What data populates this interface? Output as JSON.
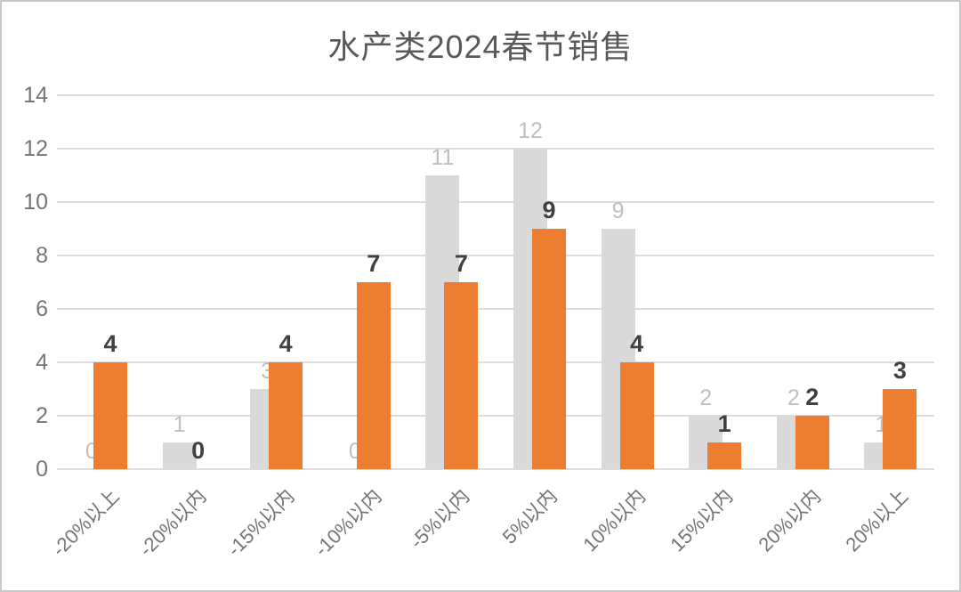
{
  "window": {
    "background": "#ffffff",
    "border_color": "#c8c8c8"
  },
  "chart_data": {
    "type": "bar",
    "title": "水产类2024春节销售",
    "categories": [
      "-20%以上",
      "-20%以内",
      "-15%以内",
      "-10%以内",
      "-5%以内",
      "5%以内",
      "10%以内",
      "15%以内",
      "20%以内",
      "20%以上"
    ],
    "series": [
      {
        "name": "gray",
        "color": "#d9d9d9",
        "label_color": "#bfbfbf",
        "values": [
          0,
          1,
          3,
          0,
          11,
          12,
          9,
          2,
          2,
          1
        ]
      },
      {
        "name": "orange",
        "color": "#ed7d31",
        "label_color": "#404040",
        "values": [
          4,
          0,
          4,
          7,
          7,
          9,
          4,
          1,
          2,
          3
        ]
      }
    ],
    "xlabel": "",
    "ylabel": "",
    "ylim": [
      0,
      14
    ],
    "y_ticks": [
      0,
      2,
      4,
      6,
      8,
      10,
      12,
      14
    ],
    "grid": true,
    "legend": "none",
    "data_labels": "outside-end",
    "x_label_rotation": -45,
    "title_color": "#595959",
    "axis_text_color": "#757575",
    "gridline_color": "#dddddd"
  }
}
